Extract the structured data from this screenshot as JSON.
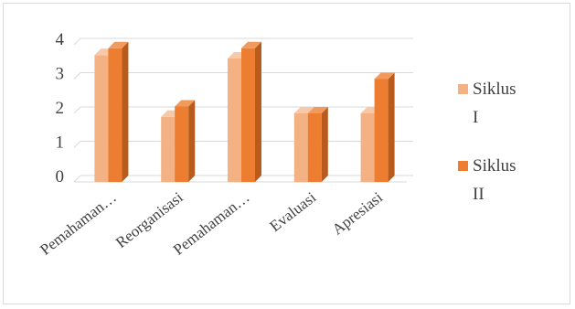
{
  "chart_data": {
    "type": "bar",
    "style": "3d-clustered-column",
    "categories": [
      "Pemahaman…",
      "Reorganisasi",
      "Pemahaman…",
      "Evaluasi",
      "Apresiasi"
    ],
    "series": [
      {
        "name": "Siklus I",
        "legend_lines": [
          "Siklus",
          "I"
        ],
        "values": [
          3.7,
          1.9,
          3.6,
          2.0,
          2.0
        ],
        "color": "#f4b183",
        "side_color": "#e89c6a",
        "top_color": "#f8c9a8"
      },
      {
        "name": "Siklus II",
        "legend_lines": [
          "Siklus",
          "II"
        ],
        "values": [
          3.9,
          2.2,
          3.9,
          2.0,
          3.0
        ],
        "color": "#ed7d31",
        "side_color": "#b85b1c",
        "top_color": "#f09a5e"
      }
    ],
    "y_ticks": [
      "0",
      "1",
      "2",
      "3",
      "4"
    ],
    "ylim": [
      0,
      4
    ],
    "grid": true,
    "legend_position": "right"
  }
}
